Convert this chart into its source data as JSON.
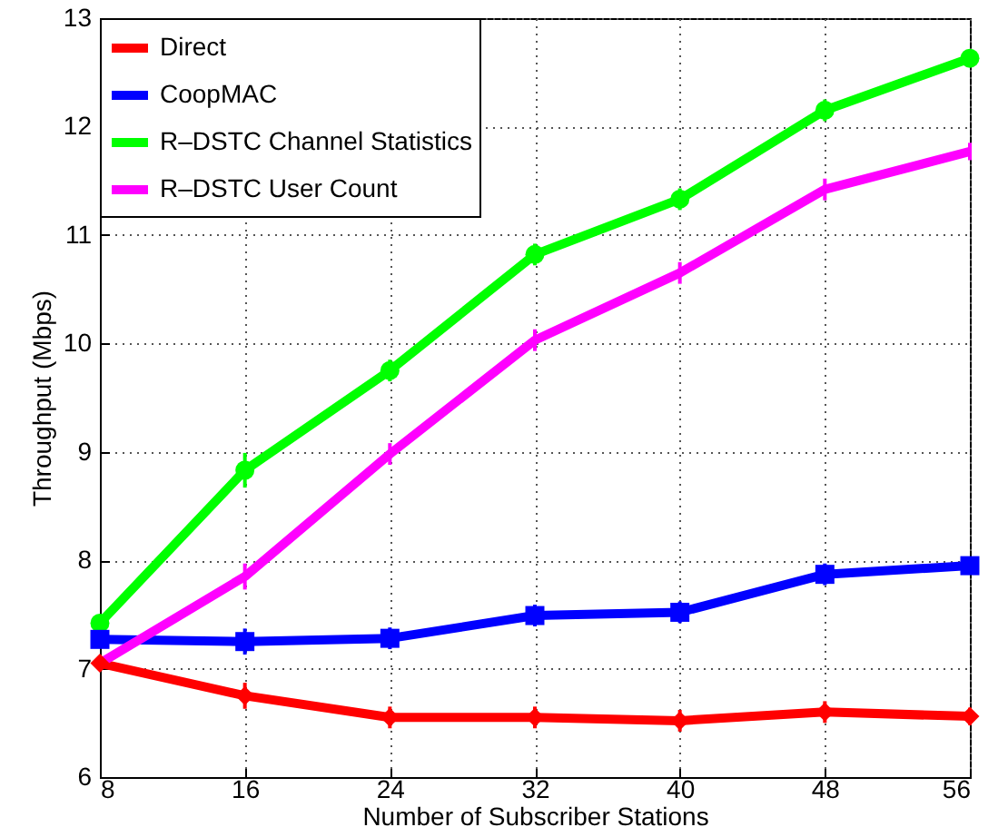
{
  "chart_data": {
    "type": "line",
    "xlabel": "Number of Subscriber Stations",
    "ylabel": "Throughput (Mbps)",
    "x": [
      8,
      16,
      24,
      32,
      40,
      48,
      56
    ],
    "xlim": [
      8,
      56
    ],
    "xticks": [
      8,
      16,
      24,
      32,
      40,
      48,
      56
    ],
    "ylim": [
      6,
      13
    ],
    "yticks": [
      6,
      7,
      8,
      9,
      10,
      11,
      12,
      13
    ],
    "grid": true,
    "legend": "top left",
    "line_style": "solid",
    "series": [
      {
        "name": "Direct",
        "color": "#ff0000",
        "marker": "diamond",
        "values": [
          7.05,
          6.75,
          6.55,
          6.55,
          6.52,
          6.6,
          6.56
        ],
        "errors": [
          null,
          0.12,
          0.1,
          0.1,
          0.1,
          0.1,
          0.08
        ]
      },
      {
        "name": "CoopMAC",
        "color": "#0000ff",
        "marker": "square",
        "values": [
          7.27,
          7.25,
          7.28,
          7.49,
          7.52,
          7.87,
          7.95
        ],
        "errors": [
          null,
          0.12,
          0.1,
          0.1,
          0.1,
          0.1,
          0.08
        ]
      },
      {
        "name": "R–DSTC Channel Statistics",
        "color": "#00ff00",
        "marker": "circle",
        "values": [
          7.42,
          8.83,
          9.75,
          10.82,
          11.33,
          12.15,
          12.63
        ],
        "errors": [
          null,
          0.16,
          0.1,
          0.1,
          0.1,
          0.1,
          0.08
        ]
      },
      {
        "name": "R–DSTC User Count",
        "color": "#ff00ff",
        "marker": "none",
        "values": [
          7.05,
          7.85,
          8.98,
          10.03,
          10.65,
          11.42,
          11.77
        ],
        "errors": [
          null,
          0.12,
          0.1,
          0.1,
          0.1,
          0.1,
          0.08
        ]
      }
    ]
  }
}
